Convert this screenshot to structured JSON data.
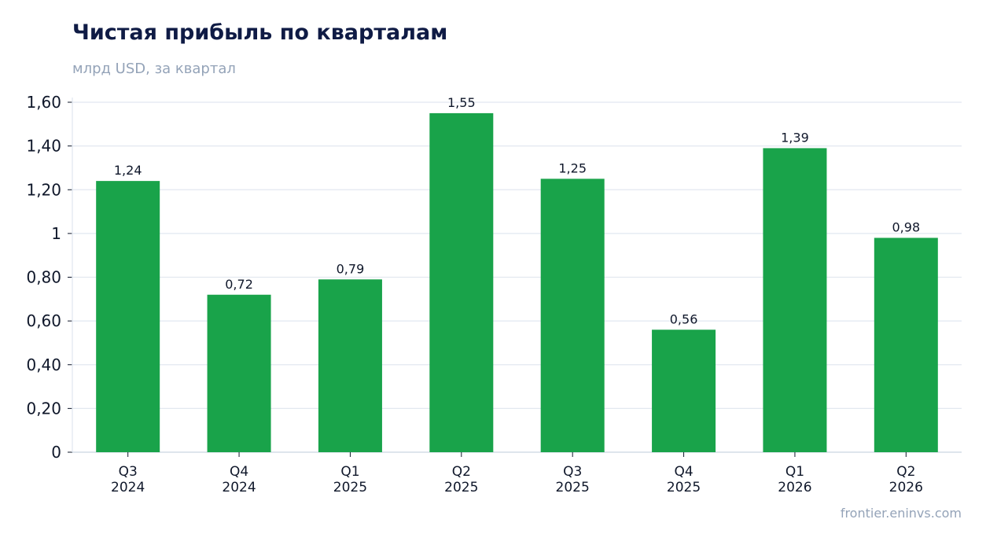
{
  "title": "Чистая прибыль по кварталам",
  "subtitle": "млрд USD, за квартал",
  "source": "frontier.eninvs.com",
  "colors": {
    "bar": "#19a34a",
    "grid": "#e2e8f0",
    "axis": "#cbd5e1",
    "text": "#0f172a",
    "muted": "#94a3b8",
    "title": "#0f1b45"
  },
  "chart_data": {
    "type": "bar",
    "title": "Чистая прибыль по кварталам",
    "subtitle": "млрд USD, за квартал",
    "xlabel": "",
    "ylabel": "",
    "categories": [
      [
        "Q3",
        "2024"
      ],
      [
        "Q4",
        "2024"
      ],
      [
        "Q1",
        "2025"
      ],
      [
        "Q2",
        "2025"
      ],
      [
        "Q3",
        "2025"
      ],
      [
        "Q4",
        "2025"
      ],
      [
        "Q1",
        "2026"
      ],
      [
        "Q2",
        "2026"
      ]
    ],
    "values": [
      1.24,
      0.72,
      0.79,
      1.55,
      1.25,
      0.56,
      1.39,
      0.98
    ],
    "data_labels": [
      "1,24",
      "0,72",
      "0,79",
      "1,55",
      "1,25",
      "0,56",
      "1,39",
      "0,98"
    ],
    "yticks": [
      0,
      0.2,
      0.4,
      0.6,
      0.8,
      1,
      1.2,
      1.4,
      1.6
    ],
    "ytick_labels": [
      "0",
      "0,20",
      "0,40",
      "0,60",
      "0,80",
      "1",
      "1,20",
      "1,40",
      "1,60"
    ],
    "ylim": [
      0,
      1.6
    ],
    "grid": true,
    "legend": "none"
  }
}
